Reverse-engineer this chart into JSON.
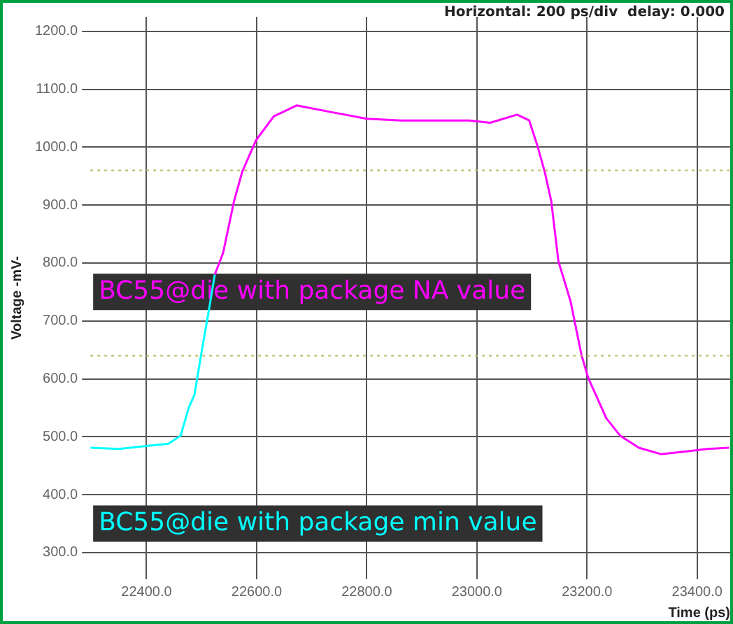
{
  "chart_data": {
    "type": "line",
    "xlabel": "Time (ps)",
    "ylabel": "Voltage -mV-",
    "annotations": [
      "Horizontal: 200 ps/div  delay: 0.000"
    ],
    "xlim": [
      22298,
      23460
    ],
    "ylim": [
      254,
      1225
    ],
    "xticks": [
      {
        "value": 22400,
        "label": "22400.0"
      },
      {
        "value": 22600,
        "label": "22600.0"
      },
      {
        "value": 22800,
        "label": "22800.0"
      },
      {
        "value": 23000,
        "label": "23000.0"
      },
      {
        "value": 23200,
        "label": "23200.0"
      },
      {
        "value": 23400,
        "label": "23400.0"
      }
    ],
    "yticks": [
      {
        "value": 300,
        "label": "300.0"
      },
      {
        "value": 400,
        "label": "400.0"
      },
      {
        "value": 500,
        "label": "500.0"
      },
      {
        "value": 600,
        "label": "600.0"
      },
      {
        "value": 700,
        "label": "700.0"
      },
      {
        "value": 800,
        "label": "800.0"
      },
      {
        "value": 900,
        "label": "900.0"
      },
      {
        "value": 1000,
        "label": "1000.0"
      },
      {
        "value": 1100,
        "label": "1100.0"
      },
      {
        "value": 1200,
        "label": "1200.0"
      }
    ],
    "grid": true,
    "marker": "none",
    "line_style": "solid",
    "ref_lines": [
      {
        "axis": "y",
        "value": 960,
        "color": "#b8b860",
        "line_style": "dotted"
      },
      {
        "axis": "y",
        "value": 640,
        "color": "#b8b860",
        "line_style": "dotted"
      }
    ],
    "series": [
      {
        "name": "BC55@die with package NA value",
        "color": "#ff00ff",
        "x": [
          22524,
          22539,
          22559,
          22574,
          22599,
          22631,
          22673,
          22738,
          22800,
          22862,
          22929,
          22986,
          23024,
          23073,
          23095,
          23110,
          23123,
          23135,
          23148,
          23170,
          23190,
          23202,
          23235,
          23260,
          23294,
          23334,
          23384,
          23418,
          23458
        ],
        "values": [
          780,
          817,
          907,
          958,
          1012,
          1053,
          1072,
          1060,
          1049,
          1046,
          1046,
          1046,
          1042,
          1056,
          1046,
          1002,
          958,
          907,
          803,
          734,
          641,
          602,
          532,
          502,
          481,
          470,
          475,
          479,
          481
        ]
      },
      {
        "name": "BC55@die with package min value",
        "color": "#00ffff",
        "x": [
          22298,
          22350,
          22400,
          22440,
          22462,
          22477,
          22487,
          22499,
          22512,
          22524
        ],
        "values": [
          481,
          479,
          484,
          488,
          502,
          551,
          572,
          641,
          711,
          780
        ]
      }
    ]
  }
}
